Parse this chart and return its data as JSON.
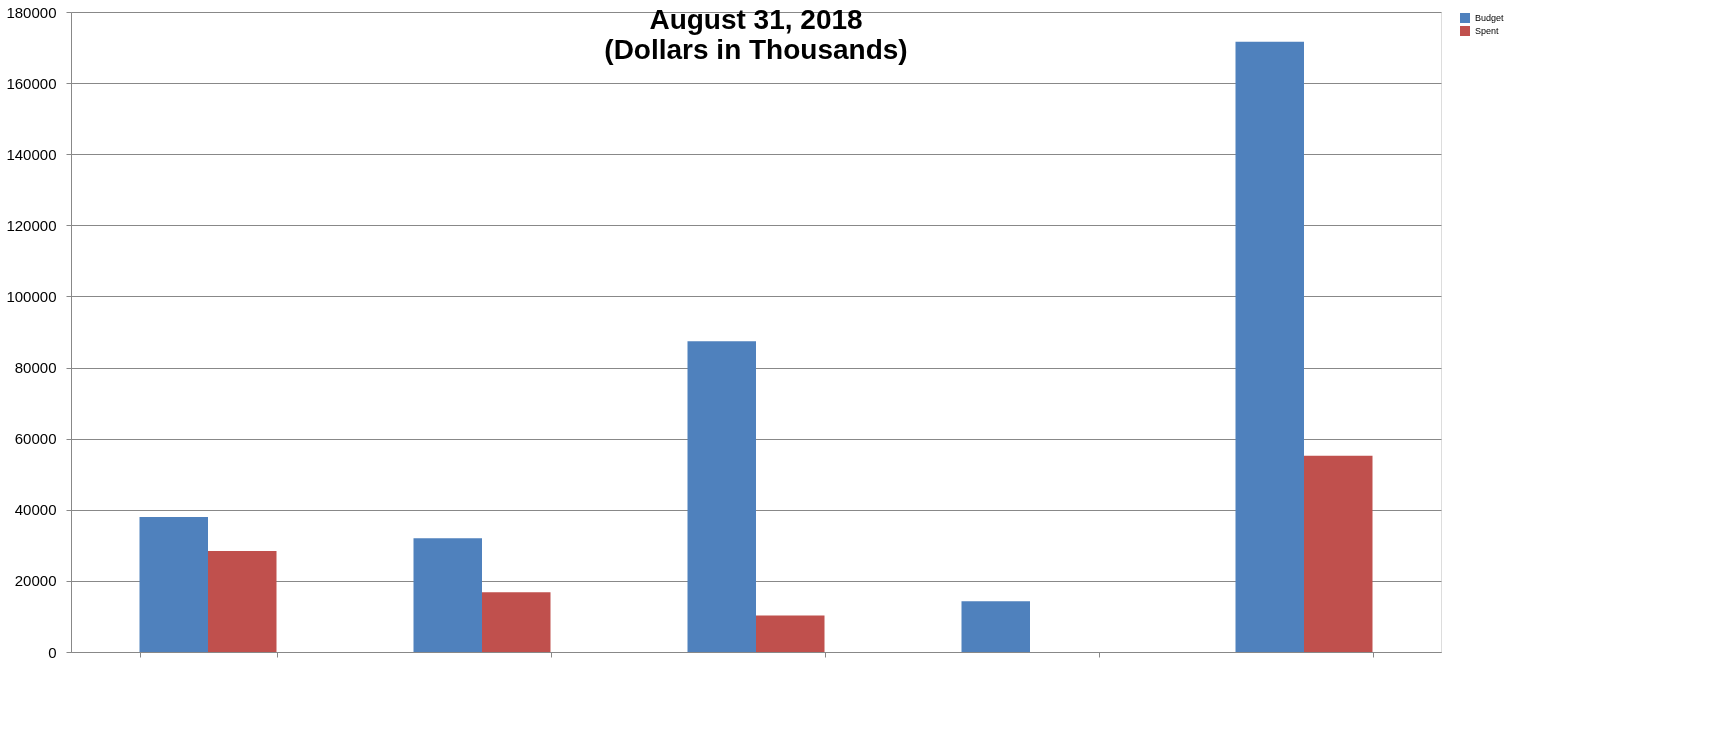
{
  "chart_data": {
    "type": "bar",
    "title": [
      "August 31, 2018",
      "(Dollars in Thousands)"
    ],
    "categories": [
      null,
      null,
      null,
      null,
      null
    ],
    "series": [
      {
        "name": "Budget",
        "color": "#4f81bd",
        "values": [
          38000,
          32000,
          87400,
          14300,
          171600
        ]
      },
      {
        "name": "Spent",
        "color": "#c0504d",
        "values": [
          28400,
          16800,
          10300,
          null,
          55200
        ]
      }
    ],
    "ylim": [
      0,
      180000
    ],
    "yticks": [
      0,
      20000,
      40000,
      60000,
      80000,
      100000,
      120000,
      140000,
      160000,
      180000
    ],
    "grid": "y",
    "legend": "right"
  }
}
